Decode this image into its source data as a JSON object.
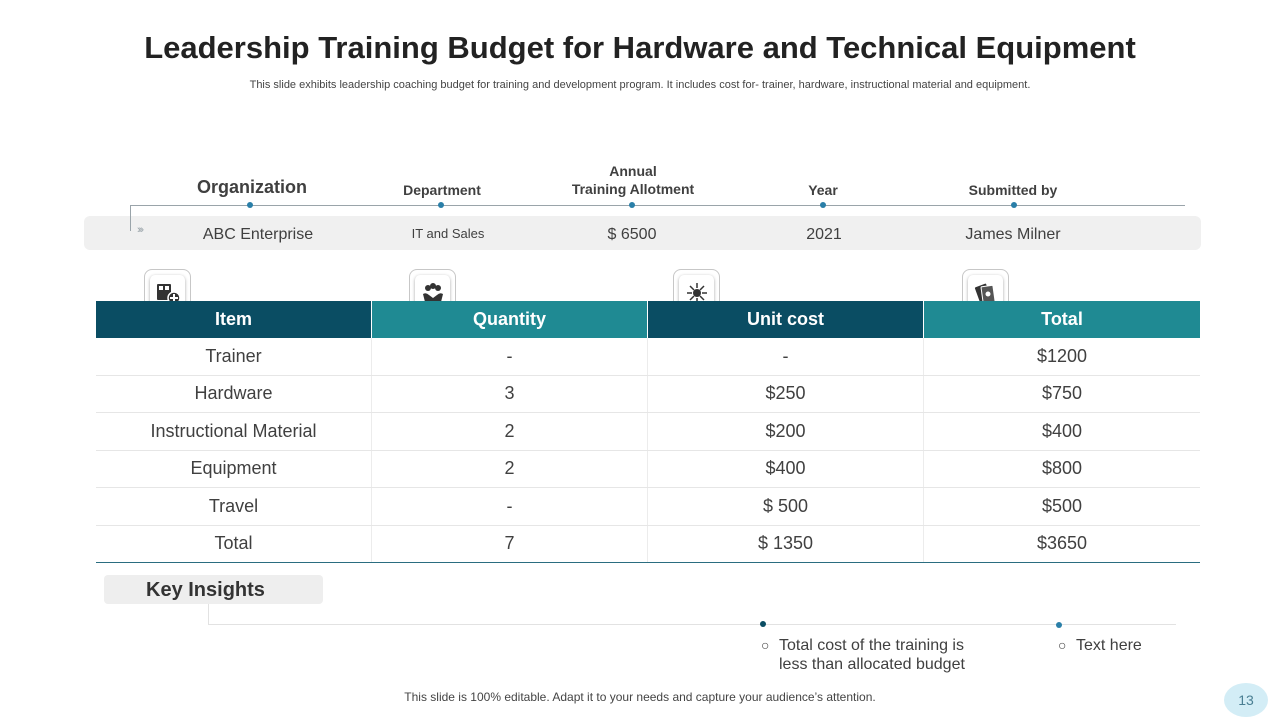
{
  "slide": {
    "title": "Leadership Training Budget for Hardware and Technical Equipment",
    "subtitle": "This slide exhibits leadership coaching budget for training and development program. It includes cost for- trainer, hardware, instructional material and equipment."
  },
  "meta": {
    "organization_label": "Organization",
    "department_label": "Department",
    "allotment_label_line1": "Annual",
    "allotment_label_line2": "Training Allotment",
    "year_label": "Year",
    "submitted_label": "Submitted by",
    "organization_value": "ABC Enterprise",
    "department_value": "IT and Sales",
    "allotment_value": "$ 6500",
    "year_value": "2021",
    "submitted_value": "James Milner"
  },
  "table": {
    "headers": [
      "Item",
      "Quantity",
      "Unit cost",
      "Total"
    ],
    "rows": [
      [
        "Trainer",
        "-",
        "-",
        "$1200"
      ],
      [
        "Hardware",
        "3",
        "$250",
        "$750"
      ],
      [
        "Instructional Material",
        "2",
        "$200",
        "$400"
      ],
      [
        "Equipment",
        "2",
        "$400",
        "$800"
      ],
      [
        "Travel",
        "-",
        "$ 500",
        "$500"
      ],
      [
        "Total",
        "7",
        "$ 1350",
        "$3650"
      ]
    ]
  },
  "icons": [
    "add-item-icon",
    "team-hands-icon",
    "network-hub-icon",
    "banknotes-icon"
  ],
  "insights": {
    "label": "Key Insights",
    "bullet1_line1": "Total cost of the training is",
    "bullet1_line2": "less than allocated budget",
    "bullet2": "Text here"
  },
  "footer": {
    "text": "This slide is 100% editable. Adapt it to your needs and capture your audience’s attention.",
    "page": "13"
  },
  "colors": {
    "header_dark": "#0a4d63",
    "header_teal": "#1f8a93",
    "accent_dot": "#2a7fa8"
  }
}
